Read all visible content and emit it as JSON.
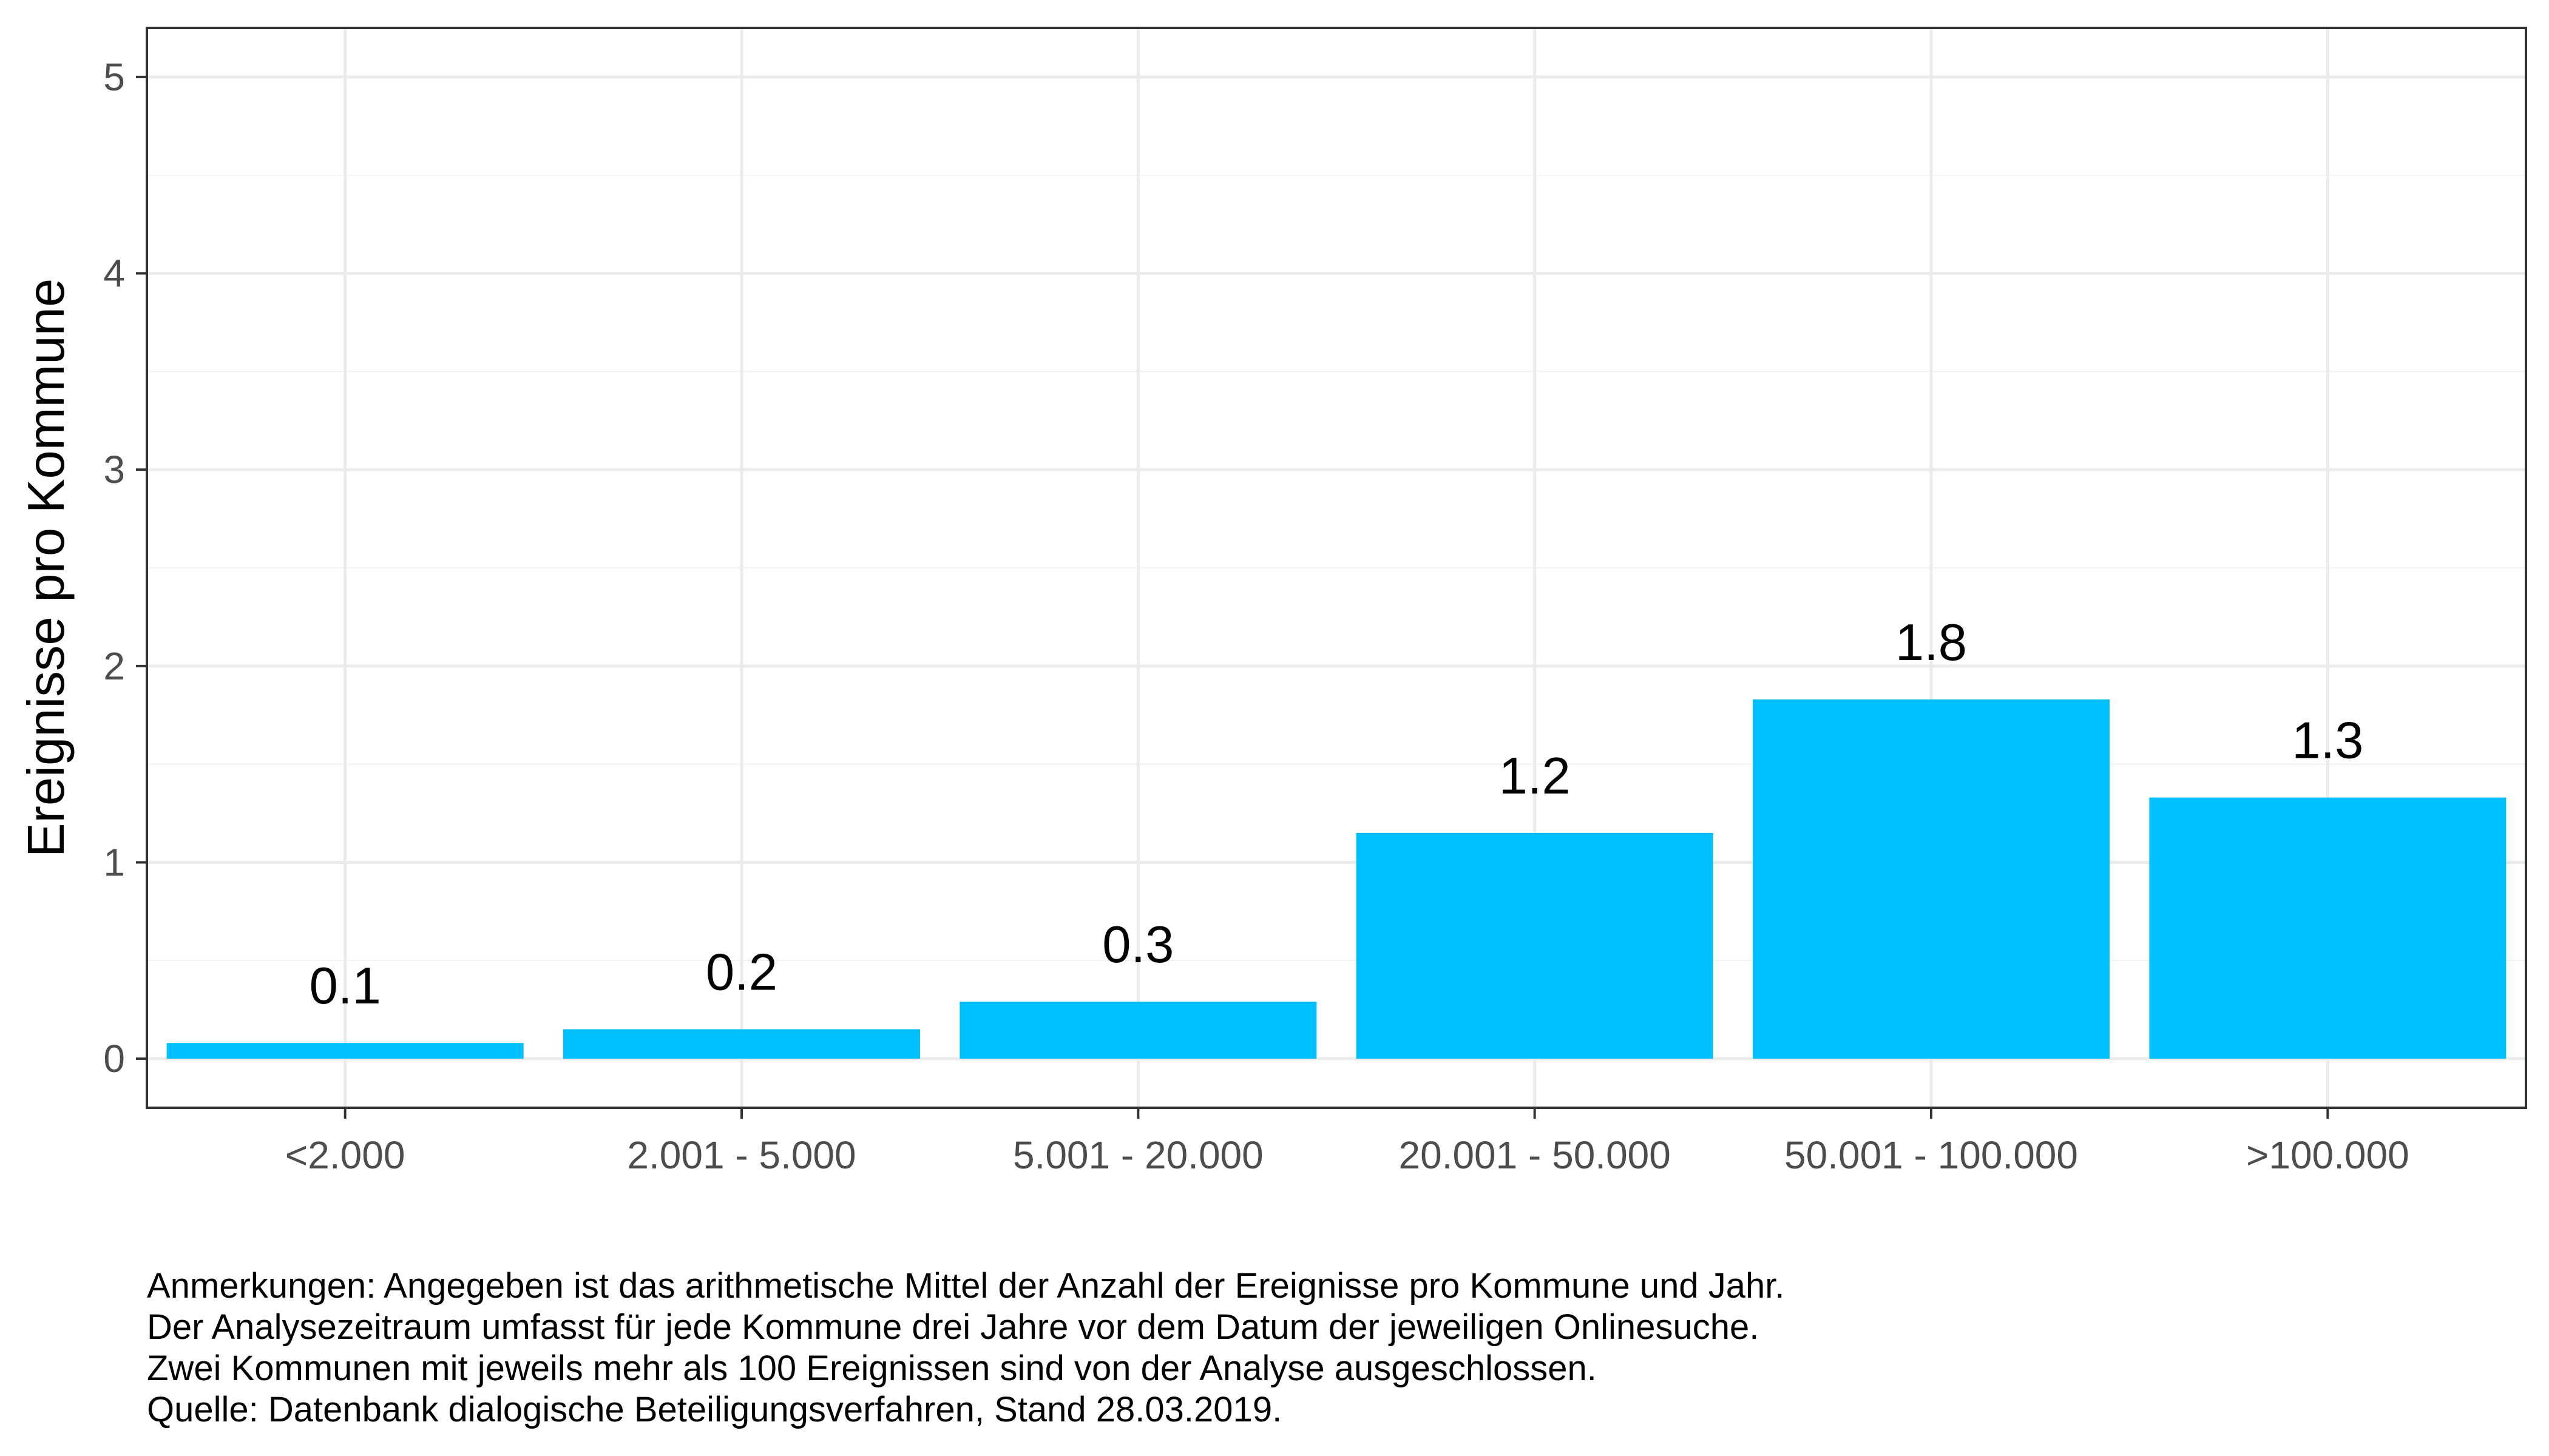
{
  "chart_data": {
    "type": "bar",
    "title": "",
    "xlabel": "",
    "ylabel": "Ereignisse pro Kommune",
    "categories": [
      "<2.000",
      "2.001 - 5.000",
      "5.001 - 20.000",
      "20.001 - 50.000",
      "50.001 - 100.000",
      ">100.000"
    ],
    "values": [
      0.08,
      0.15,
      0.29,
      1.15,
      1.83,
      1.33
    ],
    "data_labels": [
      "0.1",
      "0.2",
      "0.3",
      "1.2",
      "1.8",
      "1.3"
    ],
    "ylim": [
      -0.25,
      5.25
    ],
    "yticks": [
      0,
      1,
      2,
      3,
      4,
      5
    ],
    "ytick_labels": [
      "0",
      "1",
      "2",
      "3",
      "4",
      "5"
    ],
    "grid": true,
    "legend": "none",
    "bar_color": "#00BFFF",
    "panel_border_color": "#333333",
    "grid_major_color": "#EBEBEB",
    "grid_minor_color": "#F2F2F2"
  },
  "caption": {
    "lines": [
      "Anmerkungen: Angegeben ist das arithmetische Mittel der Anzahl der Ereignisse pro Kommune und Jahr.",
      "Der Analysezeitraum umfasst für jede Kommune drei Jahre vor dem Datum der jeweiligen Onlinesuche.",
      "Zwei Kommunen mit jeweils mehr als 100 Ereignissen sind von der Analyse ausgeschlossen.",
      "Quelle: Datenbank dialogische Beteiligungsverfahren, Stand 28.03.2019."
    ]
  }
}
